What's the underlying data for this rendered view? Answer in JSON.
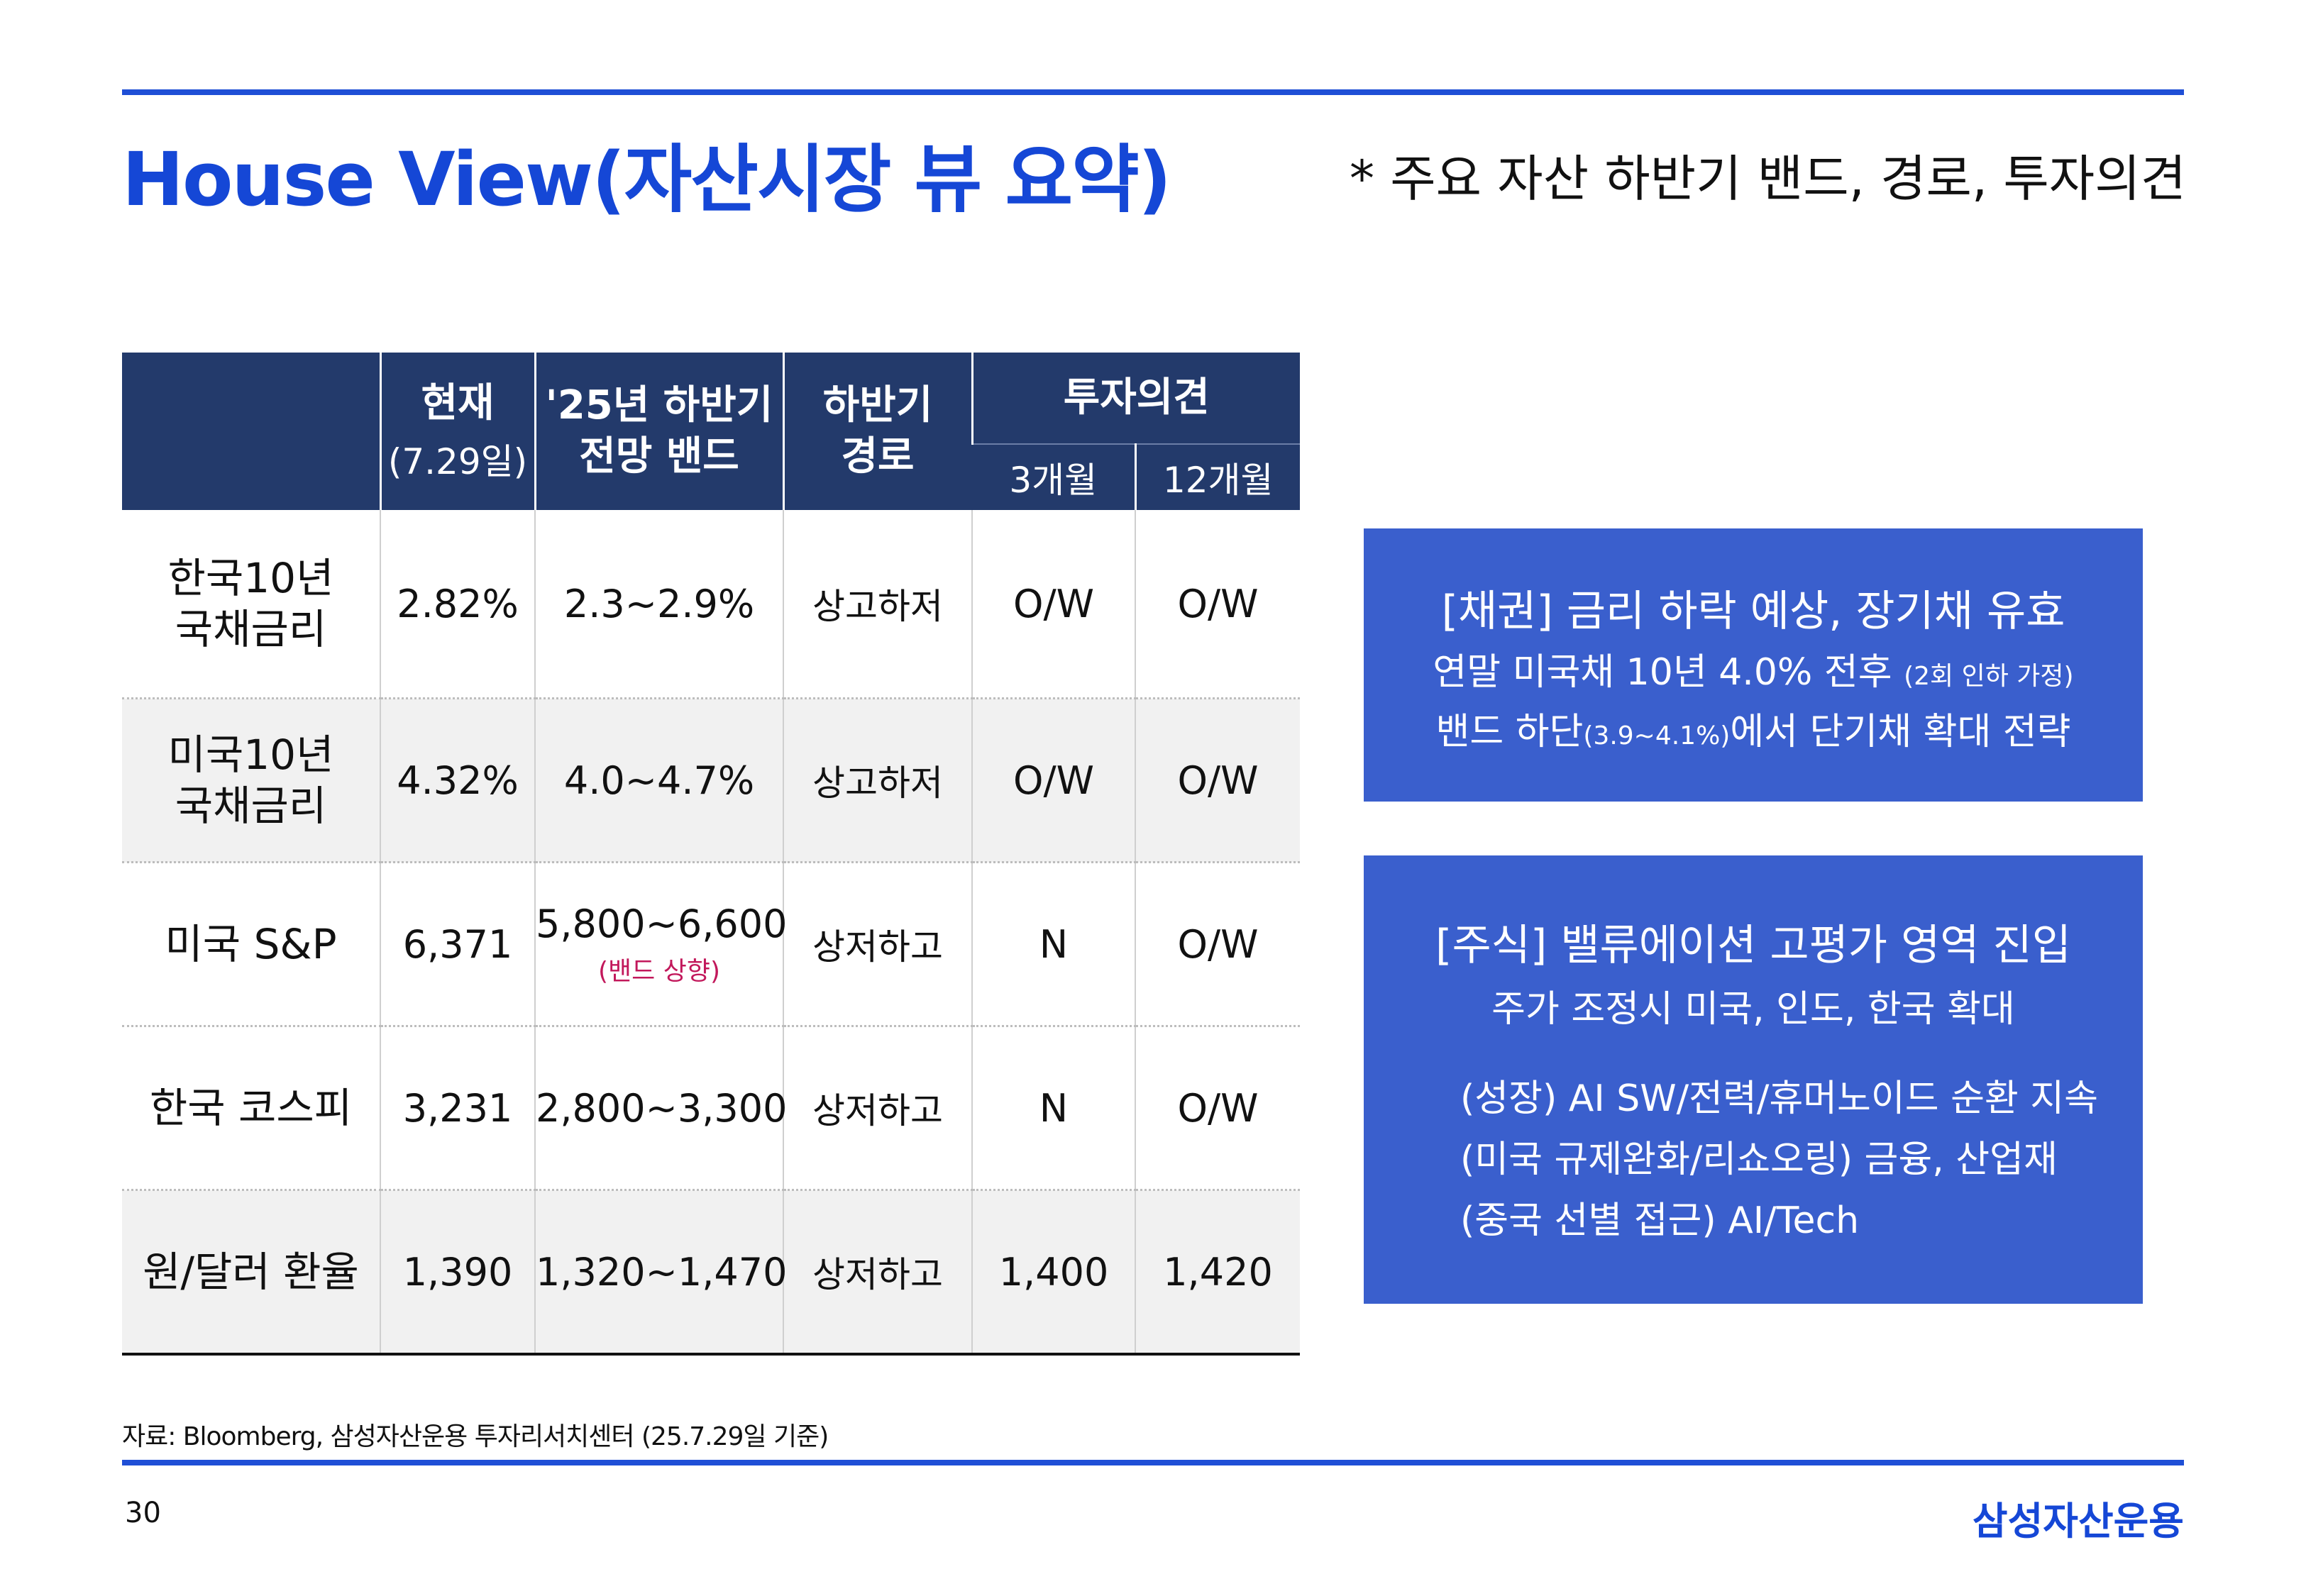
{
  "header": {
    "title": "House View(자산시장 뷰 요약)",
    "subtitle": "* 주요 자산 하반기 밴드, 경로, 투자의견"
  },
  "table": {
    "col_current": "현재",
    "col_current_sub": "(7.29일)",
    "col_band_line1": "'25년 하반기",
    "col_band_line2": "전망 밴드",
    "col_path_line1": "하반기",
    "col_path_line2": "경로",
    "col_opinion": "투자의견",
    "col_3m": "3개월",
    "col_12m": "12개월",
    "rows": [
      {
        "asset_line1": "한국10년",
        "asset_line2": "국채금리",
        "current": "2.82%",
        "band": "2.3~2.9%",
        "band_note": "",
        "path": "상고하저",
        "m3": "O/W",
        "m12": "O/W"
      },
      {
        "asset_line1": "미국10년",
        "asset_line2": "국채금리",
        "current": "4.32%",
        "band": "4.0~4.7%",
        "band_note": "",
        "path": "상고하저",
        "m3": "O/W",
        "m12": "O/W"
      },
      {
        "asset_line1": "미국 S&P",
        "asset_line2": "",
        "current": "6,371",
        "band": "5,800~6,600",
        "band_note": "(밴드 상향)",
        "path": "상저하고",
        "m3": "N",
        "m12": "O/W"
      },
      {
        "asset_line1": "한국 코스피",
        "asset_line2": "",
        "current": "3,231",
        "band": "2,800~3,300",
        "band_note": "",
        "path": "상저하고",
        "m3": "N",
        "m12": "O/W"
      },
      {
        "asset_line1": "원/달러 환율",
        "asset_line2": "",
        "current": "1,390",
        "band": "1,320~1,470",
        "band_note": "",
        "path": "상저하고",
        "m3": "1,400",
        "m12": "1,420"
      }
    ]
  },
  "bond_box": {
    "heading": "[채권] 금리 하락 예상, 장기채 유효",
    "line1": "연말 미국채 10년 4.0% 전후",
    "line1_small": "(2회 인하 가정)",
    "line2_a": "밴드 하단",
    "line2_small": "(3.9~4.1%)",
    "line2_b": "에서 단기채 확대 전략"
  },
  "equity_box": {
    "heading": "[주식] 밸류에이션 고평가 영역 진입",
    "line1": "주가 조정시 미국, 인도, 한국 확대",
    "line2": "(성장) AI SW/전력/휴머노이드 순환 지속",
    "line3": "(미국 규제완화/리쇼오링) 금융, 산업재",
    "line4": "(중국 선별 접근) AI/Tech"
  },
  "footer": {
    "source": "자료: Bloomberg, 삼성자산운용 투자리서치센터 (25.7.29일 기준)",
    "page": "30",
    "brand": "삼성자산운용"
  },
  "colors": {
    "accent": "#1f4fd6",
    "table_header": "#233a6b",
    "box_fill": "#3a5fcd",
    "note": "#c2185b"
  }
}
